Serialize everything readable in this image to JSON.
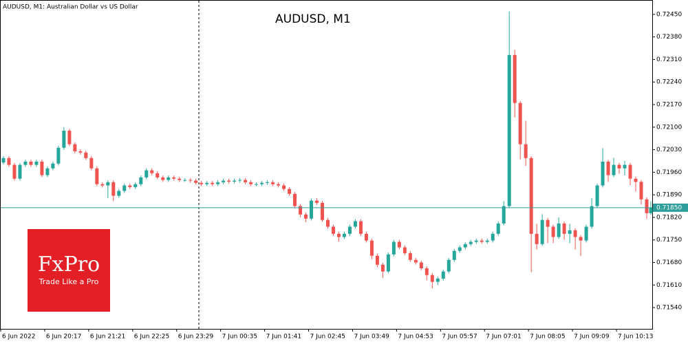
{
  "chart_data": {
    "type": "candlestick",
    "title": "AUDUSD, M1",
    "symbol_info": "AUDUSD, M1:  Australian Dollar vs US Dollar",
    "up_color": "#26a69a",
    "down_color": "#ef5350",
    "last_price_color": "#2e9e9a",
    "xlim": [
      0,
      948
    ],
    "ylim": [
      0.71474,
      0.72486
    ],
    "xticks": [
      {
        "value": 0,
        "label": "6 Jun 2022"
      },
      {
        "value": 64,
        "label": "6 Jun 20:17"
      },
      {
        "value": 128,
        "label": "6 Jun 21:21"
      },
      {
        "value": 192,
        "label": "6 Jun 22:25"
      },
      {
        "value": 256,
        "label": "6 Jun 23:29"
      },
      {
        "value": 320,
        "label": "7 Jun 00:35"
      },
      {
        "value": 384,
        "label": "7 Jun 01:41"
      },
      {
        "value": 448,
        "label": "7 Jun 02:45"
      },
      {
        "value": 512,
        "label": "7 Jun 03:49"
      },
      {
        "value": 576,
        "label": "7 Jun 04:53"
      },
      {
        "value": 640,
        "label": "7 Jun 05:57"
      },
      {
        "value": 704,
        "label": "7 Jun 07:01"
      },
      {
        "value": 768,
        "label": "7 Jun 08:05"
      },
      {
        "value": 832,
        "label": "7 Jun 09:09"
      },
      {
        "value": 896,
        "label": "7 Jun 10:13"
      }
    ],
    "yticks": [
      {
        "value": 0.7245,
        "label": "0.72450"
      },
      {
        "value": 0.7238,
        "label": "0.72380"
      },
      {
        "value": 0.7231,
        "label": "0.72310"
      },
      {
        "value": 0.7224,
        "label": "0.72240"
      },
      {
        "value": 0.7217,
        "label": "0.72170"
      },
      {
        "value": 0.721,
        "label": "0.72100"
      },
      {
        "value": 0.7203,
        "label": "0.72030"
      },
      {
        "value": 0.7196,
        "label": "0.71960"
      },
      {
        "value": 0.7189,
        "label": "0.71890"
      },
      {
        "value": 0.7182,
        "label": "0.71820"
      },
      {
        "value": 0.7175,
        "label": "0.71750"
      },
      {
        "value": 0.7168,
        "label": "0.71680"
      },
      {
        "value": 0.7161,
        "label": "0.71610"
      },
      {
        "value": 0.7154,
        "label": "0.71540"
      }
    ],
    "last_price": {
      "value": 0.7185,
      "label": "0.71850"
    },
    "x": [
      4,
      12,
      20,
      28,
      36,
      44,
      52,
      60,
      68,
      76,
      84,
      92,
      100,
      108,
      116,
      124,
      132,
      140,
      148,
      156,
      164,
      172,
      180,
      188,
      196,
      204,
      212,
      220,
      228,
      236,
      244,
      252,
      260,
      268,
      276,
      284,
      292,
      300,
      308,
      316,
      324,
      332,
      340,
      348,
      356,
      364,
      372,
      380,
      388,
      396,
      404,
      412,
      420,
      428,
      436,
      444,
      452,
      460,
      468,
      476,
      484,
      492,
      500,
      508,
      516,
      524,
      532,
      540,
      548,
      556,
      564,
      572,
      580,
      588,
      596,
      604,
      612,
      620,
      628,
      636,
      644,
      652,
      660,
      668,
      676,
      684,
      692,
      700,
      708,
      716,
      724,
      732,
      740,
      748,
      756,
      764,
      772,
      780,
      788,
      796,
      804,
      812,
      820,
      828,
      836,
      844,
      852,
      860,
      868,
      876,
      884,
      892,
      900,
      908,
      916,
      924,
      932,
      940,
      946
    ],
    "open": [
      0.7199,
      0.72004,
      0.71983,
      0.7194,
      0.71983,
      0.71993,
      0.71983,
      0.71993,
      0.71951,
      0.71972,
      0.71987,
      0.72036,
      0.72089,
      0.72047,
      0.72025,
      0.72021,
      0.72004,
      0.71972,
      0.71923,
      0.71919,
      0.71929,
      0.71887,
      0.71902,
      0.71919,
      0.71914,
      0.71923,
      0.71944,
      0.71966,
      0.71957,
      0.71944,
      0.71936,
      0.71944,
      0.7194,
      0.71936,
      0.71936,
      0.71934,
      0.71927,
      0.71923,
      0.71927,
      0.71923,
      0.71929,
      0.71934,
      0.71931,
      0.71934,
      0.71936,
      0.71929,
      0.71923,
      0.71923,
      0.71927,
      0.71929,
      0.71923,
      0.71919,
      0.71908,
      0.71893,
      0.71855,
      0.71829,
      0.71816,
      0.71872,
      0.71865,
      0.71812,
      0.71791,
      0.71769,
      0.71759,
      0.71769,
      0.71791,
      0.71808,
      0.71769,
      0.71748,
      0.71701,
      0.71673,
      0.71652,
      0.71705,
      0.71744,
      0.71727,
      0.71709,
      0.71688,
      0.7168,
      0.71662,
      0.71641,
      0.7162,
      0.7163,
      0.71652,
      0.71688,
      0.71716,
      0.71727,
      0.71737,
      0.71744,
      0.71748,
      0.71744,
      0.71748,
      0.71769,
      0.71801,
      0.71855,
      0.72324,
      0.72175,
      0.72047,
      0.72004,
      0.71769,
      0.71737,
      0.71812,
      0.71791,
      0.71759,
      0.71801,
      0.71769,
      0.7178,
      0.71759,
      0.71748,
      0.71791,
      0.71855,
      0.71919,
      0.71993,
      0.71951,
      0.71983,
      0.71972,
      0.71983,
      0.7194,
      0.7193,
      0.71876,
      0.71833
    ],
    "high": [
      0.7201,
      0.7201,
      0.71989,
      0.71989,
      0.71999,
      0.71999,
      0.71999,
      0.71999,
      0.71978,
      0.71993,
      0.72042,
      0.721,
      0.72095,
      0.72053,
      0.72031,
      0.72027,
      0.7201,
      0.71978,
      0.71929,
      0.71935,
      0.71935,
      0.71908,
      0.71925,
      0.71925,
      0.71929,
      0.7195,
      0.71972,
      0.71972,
      0.71963,
      0.7195,
      0.7195,
      0.7195,
      0.71946,
      0.71942,
      0.71942,
      0.7194,
      0.71933,
      0.71933,
      0.71933,
      0.71935,
      0.7194,
      0.7194,
      0.7194,
      0.71942,
      0.71942,
      0.71935,
      0.71929,
      0.71933,
      0.71935,
      0.71935,
      0.71929,
      0.71925,
      0.71914,
      0.71899,
      0.71861,
      0.71835,
      0.71878,
      0.7188,
      0.71871,
      0.71818,
      0.71797,
      0.71775,
      0.71775,
      0.71797,
      0.71814,
      0.71814,
      0.71775,
      0.71754,
      0.71707,
      0.71679,
      0.71711,
      0.7175,
      0.7175,
      0.71733,
      0.71715,
      0.71694,
      0.71686,
      0.71668,
      0.71647,
      0.71636,
      0.71658,
      0.71694,
      0.71722,
      0.71733,
      0.71743,
      0.7175,
      0.71754,
      0.71754,
      0.71754,
      0.71775,
      0.71807,
      0.7187,
      0.72459,
      0.7234,
      0.72181,
      0.7212,
      0.7201,
      0.718,
      0.7183,
      0.71818,
      0.71797,
      0.7182,
      0.71807,
      0.718,
      0.71786,
      0.71765,
      0.71797,
      0.7188,
      0.71925,
      0.72035,
      0.71999,
      0.72005,
      0.71989,
      0.71995,
      0.71989,
      0.71946,
      0.71936,
      0.71882,
      0.7187
    ],
    "low": [
      0.71984,
      0.71977,
      0.71934,
      0.71934,
      0.71977,
      0.71977,
      0.71977,
      0.71945,
      0.71945,
      0.71966,
      0.71981,
      0.7203,
      0.72041,
      0.72019,
      0.72015,
      0.71998,
      0.71966,
      0.71917,
      0.71913,
      0.7188,
      0.7187,
      0.71881,
      0.71896,
      0.71908,
      0.71908,
      0.71917,
      0.71938,
      0.71951,
      0.71938,
      0.7193,
      0.7193,
      0.71934,
      0.7193,
      0.7193,
      0.71928,
      0.71921,
      0.71917,
      0.71917,
      0.71917,
      0.71917,
      0.71923,
      0.71925,
      0.71925,
      0.71928,
      0.71923,
      0.71917,
      0.71917,
      0.71917,
      0.71921,
      0.71917,
      0.71913,
      0.71902,
      0.71887,
      0.71849,
      0.7182,
      0.71805,
      0.7181,
      0.71859,
      0.71806,
      0.71785,
      0.71763,
      0.71745,
      0.71753,
      0.71763,
      0.71785,
      0.71763,
      0.71742,
      0.7169,
      0.71665,
      0.71632,
      0.71646,
      0.71699,
      0.71721,
      0.71703,
      0.71682,
      0.71674,
      0.71656,
      0.71625,
      0.716,
      0.7161,
      0.71624,
      0.71646,
      0.71682,
      0.7171,
      0.71721,
      0.71731,
      0.71738,
      0.71738,
      0.71738,
      0.71742,
      0.71763,
      0.71795,
      0.71849,
      0.7213,
      0.72,
      0.7198,
      0.7165,
      0.7172,
      0.71731,
      0.7174,
      0.7174,
      0.71753,
      0.7175,
      0.7174,
      0.7172,
      0.717,
      0.71742,
      0.71785,
      0.71849,
      0.71913,
      0.7193,
      0.71945,
      0.71955,
      0.7195,
      0.7192,
      0.719,
      0.7186,
      0.71815,
      0.71827
    ],
    "close": [
      0.72004,
      0.71983,
      0.7194,
      0.71983,
      0.71993,
      0.71983,
      0.71993,
      0.71951,
      0.71972,
      0.71987,
      0.72036,
      0.72089,
      0.72047,
      0.72025,
      0.72021,
      0.72004,
      0.71972,
      0.71923,
      0.71919,
      0.71929,
      0.71887,
      0.71902,
      0.71919,
      0.71914,
      0.71923,
      0.71944,
      0.71966,
      0.71957,
      0.71944,
      0.71936,
      0.71944,
      0.7194,
      0.71936,
      0.71936,
      0.71934,
      0.71927,
      0.71923,
      0.71927,
      0.71923,
      0.71929,
      0.71934,
      0.71931,
      0.71934,
      0.71936,
      0.71929,
      0.71923,
      0.71923,
      0.71927,
      0.71929,
      0.71923,
      0.71919,
      0.71908,
      0.71893,
      0.71855,
      0.71829,
      0.71816,
      0.71872,
      0.71865,
      0.71812,
      0.71791,
      0.71769,
      0.71759,
      0.71769,
      0.71791,
      0.71808,
      0.71769,
      0.71748,
      0.71701,
      0.71673,
      0.71652,
      0.71705,
      0.71744,
      0.71727,
      0.71709,
      0.71688,
      0.7168,
      0.71662,
      0.71641,
      0.7162,
      0.7163,
      0.71652,
      0.71688,
      0.71716,
      0.71727,
      0.71737,
      0.71744,
      0.71748,
      0.71744,
      0.71748,
      0.71769,
      0.71801,
      0.71855,
      0.72324,
      0.72175,
      0.72047,
      0.72004,
      0.71769,
      0.71737,
      0.71812,
      0.71791,
      0.71759,
      0.71801,
      0.71769,
      0.7178,
      0.71759,
      0.71748,
      0.71791,
      0.71855,
      0.71919,
      0.71993,
      0.71951,
      0.71983,
      0.71972,
      0.71983,
      0.7194,
      0.7193,
      0.71876,
      0.71833,
      0.7185
    ]
  },
  "logo": {
    "brand": "FxPro",
    "tagline": "Trade Like a Pro"
  }
}
